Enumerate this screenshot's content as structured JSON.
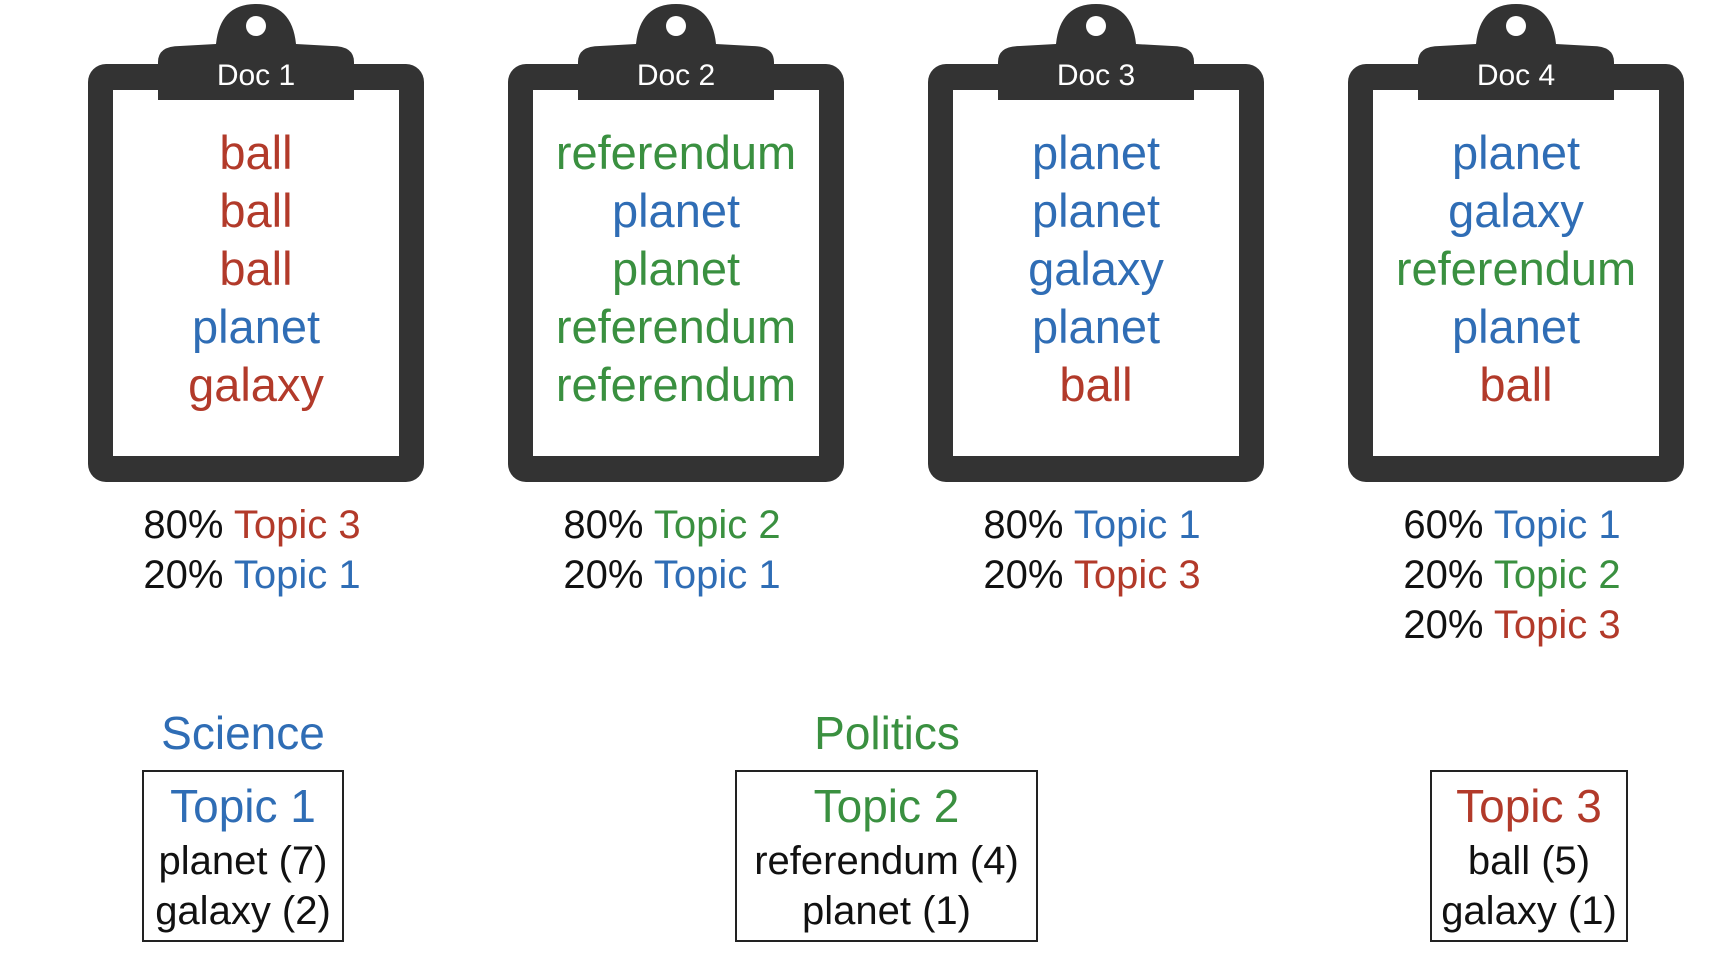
{
  "colors": {
    "topic1": "#2f6db5",
    "topic2": "#3a9040",
    "topic3": "#b23a2a",
    "clipboard": "#333333"
  },
  "documents": [
    {
      "title": "Doc 1",
      "words": [
        {
          "text": "ball",
          "topic": "topic3"
        },
        {
          "text": "ball",
          "topic": "topic3"
        },
        {
          "text": "ball",
          "topic": "topic3"
        },
        {
          "text": "planet",
          "topic": "topic1"
        },
        {
          "text": "galaxy",
          "topic": "topic3"
        }
      ],
      "mixture": [
        {
          "percent": "80%",
          "topic_label": "Topic 3",
          "topic": "topic3"
        },
        {
          "percent": "20%",
          "topic_label": "Topic 1",
          "topic": "topic1"
        }
      ]
    },
    {
      "title": "Doc 2",
      "words": [
        {
          "text": "referendum",
          "topic": "topic2"
        },
        {
          "text": "planet",
          "topic": "topic1"
        },
        {
          "text": "planet",
          "topic": "topic2"
        },
        {
          "text": "referendum",
          "topic": "topic2"
        },
        {
          "text": "referendum",
          "topic": "topic2"
        }
      ],
      "mixture": [
        {
          "percent": "80%",
          "topic_label": "Topic 2",
          "topic": "topic2"
        },
        {
          "percent": "20%",
          "topic_label": "Topic 1",
          "topic": "topic1"
        }
      ]
    },
    {
      "title": "Doc 3",
      "words": [
        {
          "text": "planet",
          "topic": "topic1"
        },
        {
          "text": "planet",
          "topic": "topic1"
        },
        {
          "text": "galaxy",
          "topic": "topic1"
        },
        {
          "text": "planet",
          "topic": "topic1"
        },
        {
          "text": "ball",
          "topic": "topic3"
        }
      ],
      "mixture": [
        {
          "percent": "80%",
          "topic_label": "Topic 1",
          "topic": "topic1"
        },
        {
          "percent": "20%",
          "topic_label": "Topic 3",
          "topic": "topic3"
        }
      ]
    },
    {
      "title": "Doc 4",
      "words": [
        {
          "text": "planet",
          "topic": "topic1"
        },
        {
          "text": "galaxy",
          "topic": "topic1"
        },
        {
          "text": "referendum",
          "topic": "topic2"
        },
        {
          "text": "planet",
          "topic": "topic1"
        },
        {
          "text": "ball",
          "topic": "topic3"
        }
      ],
      "mixture": [
        {
          "percent": "60%",
          "topic_label": "Topic 1",
          "topic": "topic1"
        },
        {
          "percent": "20%",
          "topic_label": "Topic 2",
          "topic": "topic2"
        },
        {
          "percent": "20%",
          "topic_label": "Topic 3",
          "topic": "topic3"
        }
      ]
    }
  ],
  "topics": [
    {
      "label": "Science",
      "title": "Topic 1",
      "topic": "topic1",
      "words": [
        "planet (7)",
        "galaxy (2)"
      ]
    },
    {
      "label": "Politics",
      "title": "Topic 2",
      "topic": "topic2",
      "words": [
        "referendum (4)",
        "planet (1)"
      ]
    },
    {
      "label": "",
      "title": "Topic 3",
      "topic": "topic3",
      "words": [
        "ball (5)",
        "galaxy (1)"
      ]
    }
  ]
}
